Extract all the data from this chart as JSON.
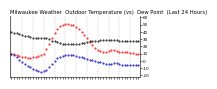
{
  "title": "Milwaukee Weather  Outdoor Temperature (vs)  Dew Point  (Last 24 Hours)",
  "bg_color": "#ffffff",
  "plot_bg": "#ffffff",
  "ylim": [
    -22,
    62
  ],
  "ytick_vals": [
    -20,
    -10,
    0,
    10,
    20,
    30,
    40,
    50,
    60
  ],
  "ytick_labels": [
    "-20",
    "-10",
    "0",
    "10",
    "20",
    "30",
    "40",
    "50",
    "60"
  ],
  "num_points": 48,
  "temp": [
    10,
    9,
    8,
    7,
    6,
    5,
    4,
    4,
    5,
    6,
    7,
    8,
    10,
    16,
    24,
    32,
    38,
    44,
    48,
    50,
    51,
    51,
    50,
    49,
    47,
    44,
    40,
    36,
    31,
    26,
    22,
    18,
    15,
    14,
    13,
    13,
    14,
    15,
    15,
    14,
    13,
    12,
    12,
    12,
    11,
    11,
    10,
    10
  ],
  "dewpoint": [
    10,
    8,
    5,
    2,
    -1,
    -4,
    -7,
    -9,
    -11,
    -13,
    -14,
    -15,
    -14,
    -12,
    -8,
    -4,
    0,
    4,
    6,
    7,
    8,
    8,
    8,
    8,
    7,
    6,
    5,
    4,
    3,
    2,
    1,
    0,
    -1,
    -2,
    -3,
    -4,
    -4,
    -4,
    -3,
    -3,
    -4,
    -5,
    -5,
    -5,
    -6,
    -6,
    -6,
    -6
  ],
  "black": [
    40,
    39,
    38,
    37,
    36,
    35,
    34,
    33,
    32,
    32,
    32,
    32,
    32,
    31,
    30,
    28,
    27,
    26,
    25,
    24,
    24,
    24,
    24,
    24,
    24,
    24,
    25,
    25,
    26,
    27,
    27,
    28,
    28,
    29,
    29,
    29,
    29,
    29,
    29,
    29,
    28,
    28,
    27,
    27,
    27,
    27,
    27,
    27
  ],
  "temp_color": "#ff0000",
  "dew_color": "#0000cc",
  "black_color": "#000000",
  "vgrid_color": "#888888",
  "num_vlines": 12,
  "title_fontsize": 3.8,
  "tick_fontsize": 3.0,
  "marker_size": 0.9
}
